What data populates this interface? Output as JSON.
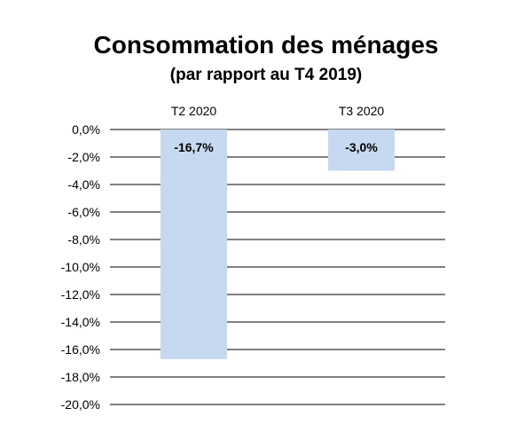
{
  "chart_data": {
    "type": "bar",
    "title": "Consommation des ménages",
    "subtitle": "(par rapport au T4 2019)",
    "categories": [
      "T2 2020",
      "T3 2020"
    ],
    "values": [
      -16.7,
      -3.0
    ],
    "data_labels": [
      "-16,7%",
      "-3,0%"
    ],
    "ylim": [
      -20,
      0
    ],
    "y_ticks": [
      "0,0%",
      "-2,0%",
      "-4,0%",
      "-6,0%",
      "-8,0%",
      "-10,0%",
      "-12,0%",
      "-14,0%",
      "-16,0%",
      "-18,0%",
      "-20,0%"
    ],
    "category_axis_position": "top",
    "grid": true,
    "legend": "none",
    "colors": {
      "bar": "#c6d9f1",
      "grid": "#808080"
    }
  }
}
